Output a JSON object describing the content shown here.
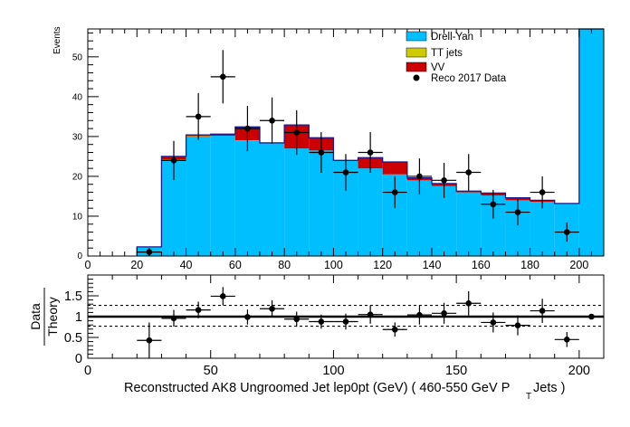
{
  "chart_data": [
    {
      "type": "histogram",
      "ylabel": "Events",
      "xlim": [
        0,
        210
      ],
      "ylim": [
        0,
        57
      ],
      "x_ticks": [
        0,
        20,
        40,
        60,
        80,
        100,
        120,
        140,
        160,
        180,
        200
      ],
      "y_ticks": [
        10,
        20,
        30,
        40,
        50
      ],
      "bin_edges": [
        20,
        30,
        40,
        50,
        60,
        70,
        80,
        90,
        100,
        110,
        120,
        130,
        140,
        150,
        160,
        170,
        180,
        190,
        200,
        210
      ],
      "stack": [
        {
          "name": "Drell-Yan",
          "color": "#00bfff",
          "values": [
            2.3,
            24.0,
            30.0,
            30.2,
            28.9,
            28.4,
            27.0,
            26.5,
            24.0,
            22.0,
            20.5,
            19.0,
            17.6,
            16.0,
            15.2,
            14.0,
            13.6,
            13.2,
            57.0
          ]
        },
        {
          "name": "TT jets",
          "color": "#cccc00",
          "values": [
            0,
            0.2,
            0.1,
            0,
            0.1,
            0,
            0,
            0,
            0,
            0,
            0,
            0,
            0,
            0,
            0,
            0,
            0,
            0,
            0
          ]
        },
        {
          "name": "VV",
          "color": "#cc0000",
          "values": [
            0,
            0.8,
            0.3,
            0.4,
            3.4,
            0,
            5.9,
            3.2,
            0,
            2.7,
            3.1,
            0.6,
            0.6,
            0.3,
            0.6,
            0.6,
            0.4,
            0,
            0
          ]
        }
      ],
      "data": {
        "name": "Reco 2017 Data",
        "x": [
          25,
          35,
          45,
          55,
          65,
          75,
          85,
          95,
          105,
          115,
          125,
          135,
          145,
          155,
          165,
          175,
          185,
          195
        ],
        "y": [
          1,
          24,
          35,
          45,
          32,
          34,
          31,
          26,
          21,
          26,
          16,
          20,
          19,
          21,
          13,
          11,
          16,
          6
        ],
        "err": [
          1.0,
          4.9,
          5.9,
          6.7,
          5.7,
          5.8,
          5.6,
          5.1,
          4.6,
          5.1,
          4.0,
          4.5,
          4.4,
          4.6,
          3.6,
          3.3,
          4.0,
          2.4
        ]
      },
      "legend_position": "top-right",
      "legend": [
        "Drell-Yan",
        "TT jets",
        "VV",
        "Reco 2017 Data"
      ]
    },
    {
      "type": "ratio",
      "ylabel": "Data",
      "ylabel_sub": "Theory",
      "xlabel": "Reconstructed AK8 Ungroomed Jet lep0pt (GeV) ( 460-550 GeV P",
      "xlabel_sub": "T",
      "xlabel_tail": " Jets  )",
      "xlim": [
        0,
        210
      ],
      "ylim": [
        0,
        2
      ],
      "x_ticks": [
        0,
        50,
        100,
        150,
        200
      ],
      "y_ticks": [
        0,
        0.5,
        1,
        1.5
      ],
      "y_tick_labels": [
        "0",
        "0.5",
        "1",
        "1.5"
      ],
      "reference_line": 1.0,
      "band_lines": [
        0.77,
        1.27
      ],
      "x": [
        25,
        35,
        45,
        55,
        65,
        75,
        85,
        95,
        105,
        115,
        125,
        135,
        145,
        155,
        165,
        175,
        185,
        195,
        205
      ],
      "y": [
        0.43,
        0.96,
        1.16,
        1.49,
        0.99,
        1.19,
        0.94,
        0.88,
        0.88,
        1.05,
        0.69,
        1.04,
        1.08,
        1.32,
        0.86,
        0.79,
        1.14,
        0.45,
        1.0
      ],
      "err": [
        0.43,
        0.2,
        0.2,
        0.22,
        0.18,
        0.2,
        0.18,
        0.17,
        0.19,
        0.22,
        0.17,
        0.23,
        0.25,
        0.29,
        0.24,
        0.24,
        0.29,
        0.18,
        0
      ]
    }
  ]
}
